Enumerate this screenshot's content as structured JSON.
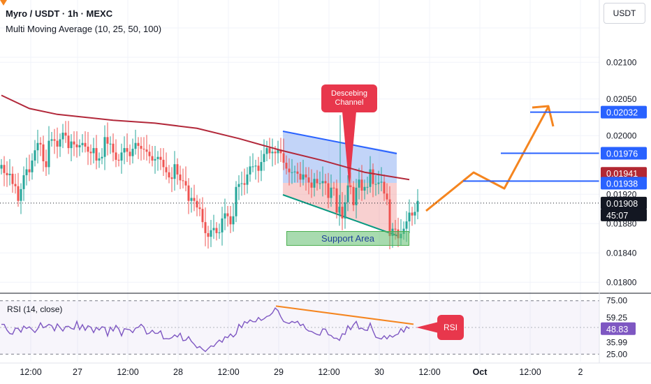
{
  "header": {
    "title": "Myro / USDT · 1h · MEXC",
    "indicator": "Multi Moving Average (10, 25, 50, 100)"
  },
  "currency_button": "USDT",
  "rsi_label": "RSI (14, close)",
  "annotations": {
    "descending_channel": "Descebing Channel",
    "support_area": "Support Area",
    "rsi": "RSI"
  },
  "colors": {
    "up": "#26a69a",
    "down": "#ef5350",
    "ma": "#b2283a",
    "channel_upper": "#2962ff",
    "channel_lower": "#089981",
    "projection": "#f5851f",
    "target_line": "#2962ff",
    "rsi_line": "#7e57c2",
    "callout": "#e8374c"
  },
  "chart_data": [
    {
      "type": "candlestick",
      "title": "Myro / USDT · 1h · MEXC",
      "price_axis_ticks": [
        "0.02100",
        "0.02050",
        "0.02000",
        "0.01920",
        "0.01880",
        "0.01840",
        "0.01800"
      ],
      "price_axis_values": [
        0.021,
        0.0205,
        0.02,
        0.0192,
        0.0188,
        0.0184,
        0.018
      ],
      "time_axis_ticks": [
        "12:00",
        "27",
        "12:00",
        "28",
        "12:00",
        "29",
        "12:00",
        "30",
        "12:00",
        "Oct",
        "12:00",
        "2"
      ],
      "ylim": [
        0.01785,
        0.02185
      ],
      "current_price": 0.01908,
      "price_labels": [
        {
          "text": "0.02032",
          "value": 0.02032,
          "kind": "target"
        },
        {
          "text": "0.01976",
          "value": 0.01976,
          "kind": "target"
        },
        {
          "text": "0.01941",
          "value": 0.01941,
          "kind": "ma"
        },
        {
          "text": "0.01938",
          "value": 0.01938,
          "kind": "target"
        },
        {
          "text": "0.01908",
          "value": 0.01908,
          "kind": "current"
        },
        {
          "text": "45:07",
          "value": 0.01908,
          "kind": "countdown"
        }
      ],
      "target_levels": [
        0.01938,
        0.01976,
        0.02032
      ],
      "close": [
        0.0196,
        0.01949,
        0.01946,
        0.01948,
        0.01934,
        0.01931,
        0.01911,
        0.01927,
        0.01946,
        0.01954,
        0.0195,
        0.01966,
        0.0198,
        0.0199,
        0.01988,
        0.01965,
        0.01957,
        0.01993,
        0.01995,
        0.01993,
        0.01985,
        0.01995,
        0.02004,
        0.02,
        0.01983,
        0.01992,
        0.01988,
        0.01984,
        0.01987,
        0.0199,
        0.01985,
        0.01978,
        0.01976,
        0.01983,
        0.01966,
        0.01969,
        0.01971,
        0.01998,
        0.01989,
        0.01989,
        0.01977,
        0.01967,
        0.01966,
        0.01977,
        0.01983,
        0.01978,
        0.01972,
        0.01982,
        0.0199,
        0.01986,
        0.01982,
        0.01981,
        0.01978,
        0.01972,
        0.01966,
        0.01968,
        0.01971,
        0.01967,
        0.01957,
        0.0195,
        0.01943,
        0.01941,
        0.01961,
        0.01947,
        0.01939,
        0.01938,
        0.01932,
        0.01911,
        0.01915,
        0.01911,
        0.01902,
        0.019,
        0.01882,
        0.01867,
        0.01862,
        0.01871,
        0.01874,
        0.01867,
        0.01868,
        0.01887,
        0.01894,
        0.0189,
        0.01879,
        0.0189,
        0.0193,
        0.01934,
        0.01935,
        0.01933,
        0.01947,
        0.01958,
        0.01958,
        0.01959,
        0.01952,
        0.01964,
        0.01975,
        0.01983,
        0.01976,
        0.01978,
        0.01976,
        0.01981,
        0.01976,
        0.01963,
        0.01955,
        0.0195,
        0.0195,
        0.01951,
        0.01948,
        0.0194,
        0.01947,
        0.01943,
        0.01936,
        0.01929,
        0.01941,
        0.01935,
        0.01935,
        0.01938,
        0.01935,
        0.01915,
        0.01929,
        0.01928,
        0.01895,
        0.01903,
        0.01887,
        0.01909,
        0.01932,
        0.0193,
        0.01905,
        0.01929,
        0.0194,
        0.01925,
        0.0193,
        0.0193,
        0.01954,
        0.01934,
        0.01934,
        0.01936,
        0.01937,
        0.01921,
        0.01913,
        0.01863,
        0.01873,
        0.01872,
        0.0186,
        0.01866,
        0.01873,
        0.01883,
        0.01895,
        0.01891,
        0.01896,
        0.01911
      ]
    },
    {
      "type": "line",
      "title": "Multi Moving Average (10, 25, 50, 100)",
      "x_range": [
        0,
        146
      ],
      "x": [
        0,
        10,
        20,
        30,
        40,
        55,
        70,
        85,
        100,
        115,
        130,
        146
      ],
      "y": [
        0.02055,
        0.02037,
        0.02029,
        0.02025,
        0.02021,
        0.02017,
        0.0201,
        0.01996,
        0.0198,
        0.01966,
        0.0195,
        0.0194
      ]
    },
    {
      "type": "line",
      "title": "RSI (14, close)",
      "ylim": [
        18,
        82
      ],
      "ticks": [
        "75.00",
        "59.25",
        "48.83",
        "35.99",
        "25.00"
      ],
      "tick_values": [
        75.0,
        59.25,
        48.83,
        35.99,
        25.0
      ],
      "current_value": 48.83,
      "values": [
        52.9,
        52.9,
        47.5,
        44.3,
        43.7,
        49.4,
        49.0,
        45.6,
        51.3,
        49.0,
        50.6,
        48.0,
        45.3,
        48.8,
        54.3,
        49.7,
        51.0,
        52.9,
        51.7,
        46.8,
        53.3,
        49.9,
        46.6,
        50.9,
        51.1,
        49.1,
        48.3,
        55.6,
        47.9,
        52.6,
        47.3,
        51.6,
        50.2,
        45.2,
        50.1,
        47.6,
        50.6,
        50.0,
        42.0,
        50.2,
        46.6,
        51.9,
        48.6,
        42.2,
        48.8,
        48.3,
        47.8,
        45.2,
        49.4,
        50.1,
        52.9,
        50.3,
        43.8,
        44.7,
        47.4,
        44.5,
        44.5,
        46.8,
        39.3,
        39.6,
        39.3,
        40.4,
        43.0,
        41.1,
        44.6,
        37.6,
        38.1,
        41.4,
        37.0,
        34.3,
        30.9,
        32.2,
        29.6,
        27.5,
        30.2,
        32.8,
        32.2,
        35.6,
        38.2,
        36.2,
        41.3,
        40.4,
        43.9,
        41.1,
        43.9,
        52.9,
        49.8,
        55.5,
        54.0,
        57.1,
        55.4,
        55.3,
        59.3,
        56.6,
        58.1,
        60.3,
        61.1,
        63.6,
        68.2,
        65.8,
        60.0,
        55.6,
        54.5,
        53.7,
        55.7,
        54.4,
        55.8,
        51.7,
        53.1,
        48.5,
        46.6,
        46.3,
        44.7,
        43.4,
        42.8,
        48.6,
        48.4,
        43.2,
        42.5,
        39.9,
        39.9,
        37.9,
        44.1,
        43.5,
        51.6,
        47.9,
        52.5,
        55.6,
        48.6,
        49.4,
        47.6,
        47.2,
        54.0,
        46.8,
        40.8,
        40.0,
        39.2,
        42.2,
        39.3,
        42.7,
        40.9,
        42.8,
        43.8,
        48.9,
        45.6,
        50.8,
        48.8
      ]
    }
  ]
}
